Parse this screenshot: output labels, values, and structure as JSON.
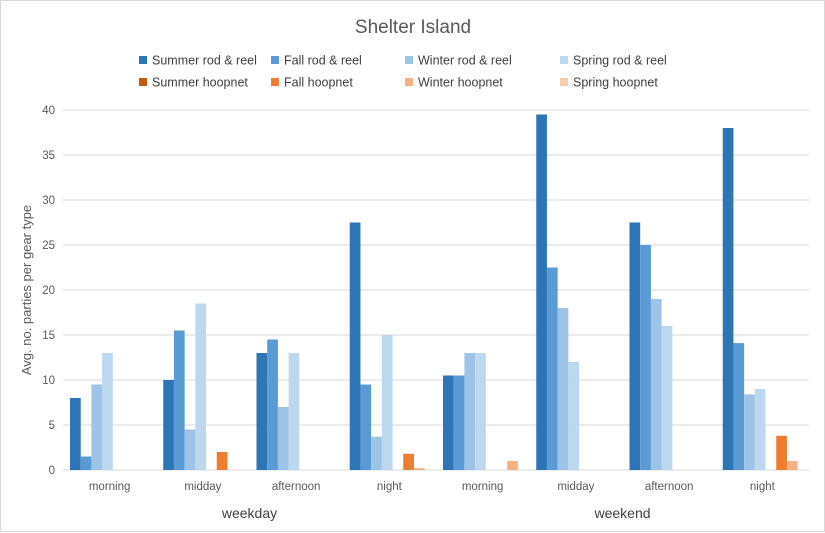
{
  "chart_data": {
    "type": "bar",
    "title": "Shelter Island",
    "xlabel": "",
    "ylabel": "Avg. no. parties per gear type",
    "ylim": [
      0,
      40
    ],
    "yticks": [
      0,
      5,
      10,
      15,
      20,
      25,
      30,
      35,
      40
    ],
    "grid": true,
    "legend_position": "top",
    "groups": [
      "weekday",
      "weekend"
    ],
    "categories": [
      "morning",
      "midday",
      "afternoon",
      "night",
      "morning",
      "midday",
      "afternoon",
      "night"
    ],
    "series": [
      {
        "name": "Summer rod & reel",
        "color": "#2e75b6",
        "values": [
          8,
          10,
          13,
          27.5,
          10.5,
          39.5,
          27.5,
          38
        ]
      },
      {
        "name": "Fall rod & reel",
        "color": "#5b9bd5",
        "values": [
          1.5,
          15.5,
          14.5,
          9.5,
          10.5,
          22.5,
          25,
          14.1
        ]
      },
      {
        "name": "Winter rod & reel",
        "color": "#9dc3e6",
        "values": [
          9.5,
          4.5,
          7,
          3.7,
          13,
          18,
          19,
          8.4
        ]
      },
      {
        "name": "Spring rod & reel",
        "color": "#bdd7ee",
        "values": [
          13,
          18.5,
          13,
          15,
          13,
          12,
          16,
          9
        ]
      },
      {
        "name": "Summer hoopnet",
        "color": "#c55a11",
        "values": [
          0,
          0,
          0,
          0,
          0,
          0,
          0,
          0
        ]
      },
      {
        "name": "Fall hoopnet",
        "color": "#ed7d31",
        "values": [
          0,
          2,
          0,
          1.8,
          0,
          0,
          0,
          3.8
        ]
      },
      {
        "name": "Winter hoopnet",
        "color": "#f4b183",
        "values": [
          0,
          0,
          0,
          0.2,
          1,
          0,
          0,
          1
        ]
      },
      {
        "name": "Spring hoopnet",
        "color": "#f8cbad",
        "values": [
          0,
          0,
          0,
          0,
          0,
          0,
          0,
          0
        ]
      }
    ]
  }
}
